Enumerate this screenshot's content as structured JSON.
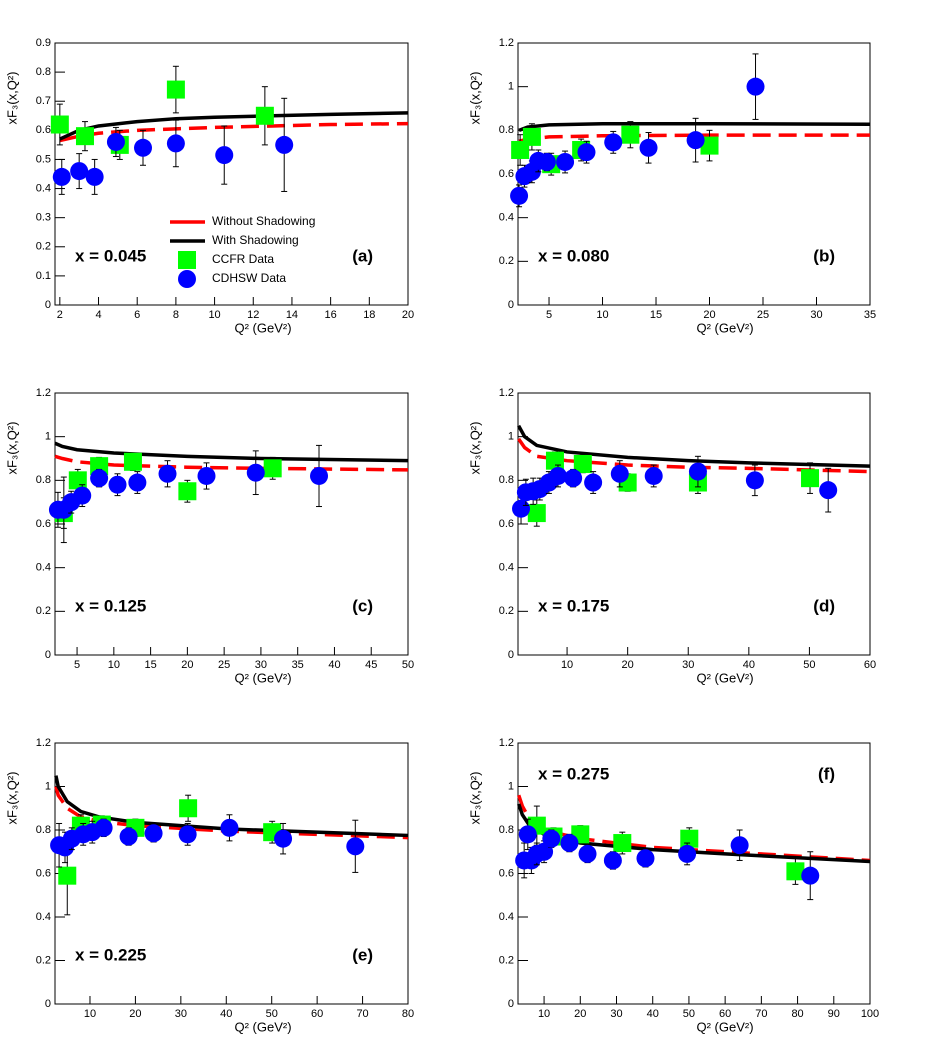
{
  "chart_data": [
    {
      "type": "line",
      "xlabel": "Q² (GeV²)",
      "ylabel": "xF₃(x,Q²)",
      "annotation": "x = 0.045",
      "panel": "(a)",
      "legend": "center",
      "xlim": [
        1.75,
        20
      ],
      "ylim": [
        0,
        0.9
      ],
      "xticks": [
        2,
        4,
        6,
        8,
        10,
        12,
        14,
        16,
        18,
        20
      ],
      "yticks": [
        0,
        0.1,
        0.2,
        0.3,
        0.4,
        0.5,
        0.6,
        0.7,
        0.8,
        0.9
      ],
      "series": [
        {
          "name": "Without Shadowing",
          "color": "#ff0000",
          "style": "dashed",
          "x": [
            2,
            3,
            4,
            6,
            8,
            10,
            13,
            16,
            20
          ],
          "values": [
            0.565,
            0.58,
            0.59,
            0.6,
            0.605,
            0.61,
            0.615,
            0.62,
            0.623
          ]
        },
        {
          "name": "With Shadowing",
          "color": "#000000",
          "style": "solid",
          "x": [
            2,
            3,
            4,
            6,
            8,
            10,
            13,
            16,
            20
          ],
          "values": [
            0.57,
            0.6,
            0.615,
            0.63,
            0.64,
            0.645,
            0.65,
            0.655,
            0.66
          ]
        },
        {
          "name": "CCFR Data",
          "color": "#00ff00",
          "style": "square",
          "x": [
            2.0,
            3.3,
            5.1,
            8.0,
            12.6
          ],
          "values": [
            0.62,
            0.58,
            0.55,
            0.74,
            0.65
          ],
          "errors": [
            0.07,
            0.05,
            0.05,
            0.08,
            0.1
          ]
        },
        {
          "name": "CDHSW Data",
          "color": "#0000ff",
          "style": "circle",
          "x": [
            2.1,
            3.0,
            3.8,
            4.9,
            6.3,
            8.0,
            10.5,
            13.6
          ],
          "values": [
            0.44,
            0.46,
            0.44,
            0.56,
            0.54,
            0.555,
            0.515,
            0.55
          ],
          "errors": [
            0.06,
            0.06,
            0.06,
            0.05,
            0.06,
            0.08,
            0.1,
            0.16
          ]
        }
      ]
    },
    {
      "type": "line",
      "xlabel": "Q² (GeV²)",
      "ylabel": "xF₃(x,Q²)",
      "annotation": "x = 0.080",
      "panel": "(b)",
      "xlim": [
        2.1,
        35
      ],
      "ylim": [
        0,
        1.2
      ],
      "xticks": [
        5,
        10,
        15,
        20,
        25,
        30,
        35
      ],
      "yticks": [
        0,
        0.2,
        0.4,
        0.6,
        0.8,
        1,
        1.2
      ],
      "series": [
        {
          "color": "#ff0000",
          "style": "dashed",
          "x": [
            2.2,
            3,
            5,
            10,
            20,
            35
          ],
          "values": [
            0.75,
            0.76,
            0.77,
            0.775,
            0.778,
            0.778
          ]
        },
        {
          "color": "#000000",
          "style": "solid",
          "x": [
            2.2,
            3,
            5,
            10,
            20,
            35
          ],
          "values": [
            0.8,
            0.815,
            0.825,
            0.83,
            0.83,
            0.828
          ]
        },
        {
          "color": "#00ff00",
          "style": "square",
          "x": [
            2.3,
            3.4,
            5.2,
            8.0,
            12.6,
            20
          ],
          "values": [
            0.71,
            0.77,
            0.645,
            0.71,
            0.78,
            0.73
          ],
          "errors": [
            0.07,
            0.06,
            0.05,
            0.05,
            0.06,
            0.07
          ]
        },
        {
          "color": "#0000ff",
          "style": "circle",
          "x": [
            2.2,
            2.7,
            3.4,
            4.0,
            4.8,
            6.5,
            8.5,
            11,
            14.3,
            18.7,
            24.3
          ],
          "values": [
            0.5,
            0.59,
            0.61,
            0.66,
            0.655,
            0.655,
            0.7,
            0.745,
            0.72,
            0.755,
            1.0
          ],
          "errors": [
            0.05,
            0.05,
            0.05,
            0.05,
            0.04,
            0.05,
            0.05,
            0.05,
            0.07,
            0.1,
            0.15
          ]
        }
      ]
    },
    {
      "type": "line",
      "xlabel": "Q² (GeV²)",
      "ylabel": "xF₃(x,Q²)",
      "annotation": "x = 0.125",
      "panel": "(c)",
      "xlim": [
        2,
        50
      ],
      "ylim": [
        0,
        1.2
      ],
      "xticks": [
        5,
        10,
        15,
        20,
        25,
        30,
        35,
        40,
        45,
        50
      ],
      "yticks": [
        0,
        0.2,
        0.4,
        0.6,
        0.8,
        1,
        1.2
      ],
      "series": [
        {
          "color": "#ff0000",
          "style": "dashed",
          "x": [
            2,
            3,
            5,
            10,
            20,
            30,
            50
          ],
          "values": [
            0.91,
            0.9,
            0.885,
            0.87,
            0.86,
            0.855,
            0.848
          ]
        },
        {
          "color": "#000000",
          "style": "solid",
          "x": [
            2,
            3,
            5,
            10,
            20,
            30,
            50
          ],
          "values": [
            0.97,
            0.955,
            0.94,
            0.925,
            0.91,
            0.9,
            0.89
          ]
        },
        {
          "color": "#00ff00",
          "style": "square",
          "x": [
            3.2,
            5.1,
            8.0,
            12.6,
            20,
            31.6
          ],
          "values": [
            0.65,
            0.8,
            0.865,
            0.885,
            0.75,
            0.855
          ],
          "errors": [
            0.07,
            0.05,
            0.04,
            0.04,
            0.05,
            0.05
          ]
        },
        {
          "color": "#0000ff",
          "style": "circle",
          "x": [
            2.4,
            3.2,
            4.2,
            5.7,
            8.0,
            10.5,
            13.2,
            17.3,
            22.6,
            29.3,
            37.9
          ],
          "values": [
            0.665,
            0.665,
            0.7,
            0.73,
            0.81,
            0.78,
            0.79,
            0.83,
            0.82,
            0.835,
            0.82
          ],
          "errors": [
            0.08,
            0.15,
            0.05,
            0.05,
            0.04,
            0.05,
            0.05,
            0.06,
            0.06,
            0.1,
            0.14
          ]
        }
      ]
    },
    {
      "type": "line",
      "xlabel": "Q² (GeV²)",
      "ylabel": "xF₃(x,Q²)",
      "annotation": "x = 0.175",
      "panel": "(d)",
      "xlim": [
        1.9,
        60
      ],
      "ylim": [
        0,
        1.2
      ],
      "xticks": [
        10,
        20,
        30,
        40,
        50,
        60
      ],
      "yticks": [
        0,
        0.2,
        0.4,
        0.6,
        0.8,
        1,
        1.2
      ],
      "series": [
        {
          "color": "#ff0000",
          "style": "dashed",
          "x": [
            2,
            3,
            5,
            10,
            20,
            30,
            40,
            60
          ],
          "values": [
            0.99,
            0.95,
            0.91,
            0.89,
            0.87,
            0.86,
            0.855,
            0.84
          ]
        },
        {
          "color": "#000000",
          "style": "solid",
          "x": [
            2,
            3,
            5,
            10,
            20,
            30,
            40,
            60
          ],
          "values": [
            1.05,
            1.0,
            0.96,
            0.93,
            0.905,
            0.89,
            0.88,
            0.865
          ]
        },
        {
          "color": "#00ff00",
          "style": "square",
          "x": [
            5.0,
            8.0,
            12.6,
            20,
            31.6,
            50.1
          ],
          "values": [
            0.65,
            0.89,
            0.875,
            0.79,
            0.79,
            0.81
          ],
          "errors": [
            0.06,
            0.04,
            0.04,
            0.04,
            0.05,
            0.07
          ]
        },
        {
          "color": "#0000ff",
          "style": "circle",
          "x": [
            2.4,
            3.2,
            4.4,
            5.5,
            7.0,
            8.5,
            11,
            14.3,
            18.7,
            24.3,
            31.6,
            41,
            53.1
          ],
          "values": [
            0.67,
            0.745,
            0.75,
            0.76,
            0.79,
            0.82,
            0.81,
            0.79,
            0.83,
            0.82,
            0.84,
            0.8,
            0.755
          ],
          "errors": [
            0.07,
            0.06,
            0.06,
            0.05,
            0.05,
            0.05,
            0.04,
            0.05,
            0.06,
            0.05,
            0.07,
            0.07,
            0.1
          ]
        }
      ]
    },
    {
      "type": "line",
      "xlabel": "Q² (GeV²)",
      "ylabel": "xF₃(x,Q²)",
      "annotation": "x = 0.225",
      "panel": "(e)",
      "xlim": [
        2.3,
        80
      ],
      "ylim": [
        0,
        1.2
      ],
      "xticks": [
        10,
        20,
        30,
        40,
        50,
        60,
        70,
        80
      ],
      "yticks": [
        0,
        0.2,
        0.4,
        0.6,
        0.8,
        1,
        1.2
      ],
      "series": [
        {
          "color": "#ff0000",
          "style": "dashed",
          "x": [
            2.5,
            3,
            5,
            8,
            12,
            20,
            40,
            80
          ],
          "values": [
            1.0,
            0.96,
            0.9,
            0.86,
            0.84,
            0.82,
            0.795,
            0.765
          ]
        },
        {
          "color": "#000000",
          "style": "solid",
          "x": [
            2.5,
            3,
            5,
            8,
            12,
            20,
            40,
            80
          ],
          "values": [
            1.05,
            1.0,
            0.93,
            0.885,
            0.86,
            0.835,
            0.805,
            0.775
          ]
        },
        {
          "color": "#00ff00",
          "style": "square",
          "x": [
            5.0,
            8.0,
            12.6,
            20,
            31.6,
            50.1
          ],
          "values": [
            0.59,
            0.82,
            0.825,
            0.81,
            0.9,
            0.79
          ],
          "errors": [
            0.18,
            0.05,
            0.04,
            0.04,
            0.06,
            0.05
          ]
        },
        {
          "color": "#0000ff",
          "style": "circle",
          "x": [
            3.2,
            4.5,
            6.0,
            8.5,
            10.5,
            13,
            18.5,
            24,
            31.5,
            40.7,
            52.5,
            68.4
          ],
          "values": [
            0.73,
            0.72,
            0.76,
            0.78,
            0.79,
            0.81,
            0.77,
            0.785,
            0.78,
            0.81,
            0.76,
            0.725
          ],
          "errors": [
            0.1,
            0.07,
            0.05,
            0.05,
            0.05,
            0.04,
            0.04,
            0.04,
            0.05,
            0.06,
            0.07,
            0.12
          ]
        }
      ]
    },
    {
      "type": "line",
      "xlabel": "Q² (GeV²)",
      "ylabel": "xF₃(x,Q²)",
      "annotation": "x = 0.275",
      "panel": "(f)",
      "xlim": [
        2.8,
        100
      ],
      "ylim": [
        0,
        1.2
      ],
      "xticks": [
        10,
        20,
        30,
        40,
        50,
        60,
        70,
        80,
        90,
        100
      ],
      "yticks": [
        0,
        0.2,
        0.4,
        0.6,
        0.8,
        1,
        1.2
      ],
      "series": [
        {
          "color": "#ff0000",
          "style": "dashed",
          "x": [
            3,
            4,
            6,
            10,
            20,
            40,
            60,
            100
          ],
          "values": [
            0.96,
            0.91,
            0.85,
            0.8,
            0.76,
            0.72,
            0.7,
            0.66
          ]
        },
        {
          "color": "#000000",
          "style": "solid",
          "x": [
            3,
            4,
            6,
            10,
            20,
            40,
            60,
            100
          ],
          "values": [
            0.92,
            0.87,
            0.82,
            0.78,
            0.74,
            0.71,
            0.69,
            0.655
          ]
        },
        {
          "color": "#00ff00",
          "style": "square",
          "x": [
            8.0,
            12.6,
            20,
            31.6,
            50.1,
            79.4
          ],
          "values": [
            0.82,
            0.77,
            0.78,
            0.74,
            0.76,
            0.61
          ],
          "errors": [
            0.09,
            0.04,
            0.04,
            0.05,
            0.05,
            0.06
          ]
        },
        {
          "color": "#0000ff",
          "style": "circle",
          "x": [
            4.5,
            5.5,
            6.5,
            8,
            10,
            12,
            17,
            22,
            29,
            38,
            49.5,
            64,
            83.5
          ],
          "values": [
            0.66,
            0.78,
            0.66,
            0.69,
            0.7,
            0.76,
            0.74,
            0.69,
            0.66,
            0.67,
            0.69,
            0.73,
            0.59
          ],
          "errors": [
            0.08,
            0.07,
            0.06,
            0.05,
            0.05,
            0.04,
            0.04,
            0.04,
            0.04,
            0.04,
            0.05,
            0.07,
            0.11
          ]
        }
      ]
    }
  ]
}
